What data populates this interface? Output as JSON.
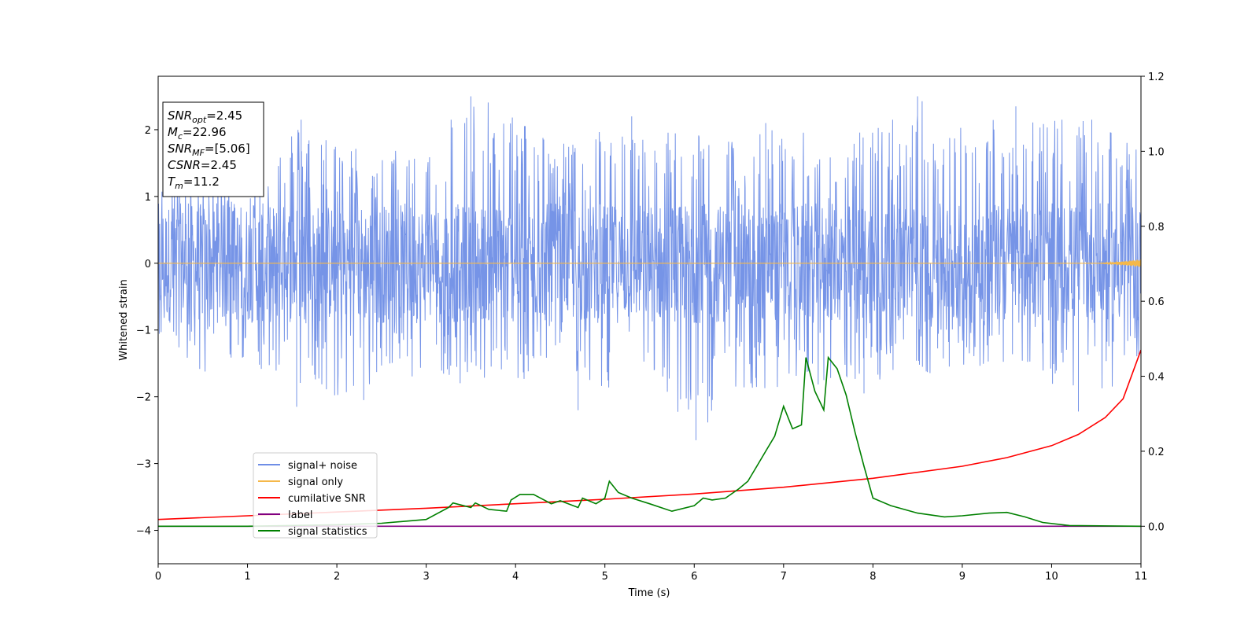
{
  "chart_data": {
    "type": "line",
    "title": "",
    "xlabel": "Time (s)",
    "ylabel_left": "Whitened strain",
    "ylabel_right": "",
    "xlim": [
      0,
      11
    ],
    "ylim_left": [
      -4.5,
      2.8
    ],
    "ylim_right": [
      -0.1,
      1.2
    ],
    "xticks": [
      0,
      1,
      2,
      3,
      4,
      5,
      6,
      7,
      8,
      9,
      10,
      11
    ],
    "xtick_labels": [
      "0",
      "1",
      "2",
      "3",
      "4",
      "5",
      "6",
      "7",
      "8",
      "9",
      "10",
      "11"
    ],
    "yticks_left": [
      -4,
      -3,
      -2,
      -1,
      0,
      1,
      2
    ],
    "ytick_labels_left": [
      "−4",
      "−3",
      "−2",
      "−1",
      "0",
      "1",
      "2"
    ],
    "yticks_right": [
      0.0,
      0.2,
      0.4,
      0.6,
      0.8,
      1.0,
      1.2
    ],
    "ytick_labels_right": [
      "0.0",
      "0.2",
      "0.4",
      "0.6",
      "0.8",
      "1.0",
      "1.2"
    ],
    "grid": false,
    "legend_position": "lower-left",
    "info_box": [
      {
        "sym": "SNR",
        "sub": "opt",
        "val": "=2.45"
      },
      {
        "sym": "M",
        "sub": "c",
        "val": "=22.96"
      },
      {
        "sym": "SNR",
        "sub": "MF",
        "val": "=[5.06]"
      },
      {
        "sym": "CSNR",
        "sub": "",
        "val": "=2.45"
      },
      {
        "sym": "T",
        "sub": "m",
        "val": "=11.2"
      }
    ],
    "series": [
      {
        "name": "signal+ noise",
        "axis": "left",
        "color": "#6f8ee6",
        "description": "noise envelope",
        "x": [
          0,
          0.5,
          1,
          1.5,
          2,
          2.5,
          3,
          3.5,
          4,
          4.5,
          5,
          5.5,
          6,
          6.5,
          7,
          7.5,
          8,
          8.5,
          9,
          9.5,
          10,
          10.5,
          11
        ],
        "upper": [
          1.4,
          1.5,
          1.3,
          2.1,
          1.9,
          1.6,
          2.0,
          2.5,
          2.3,
          1.8,
          2.1,
          1.9,
          2.2,
          1.8,
          2.2,
          1.7,
          2.1,
          2.5,
          2.1,
          2.3,
          2.2,
          2.1,
          1.7
        ],
        "lower": [
          -1.1,
          -1.7,
          -1.5,
          -2.1,
          -2.0,
          -1.9,
          -1.8,
          -1.8,
          -1.9,
          -1.5,
          -1.9,
          -1.6,
          -2.6,
          -1.9,
          -1.9,
          -1.8,
          -1.8,
          -1.7,
          -1.6,
          -1.6,
          -1.8,
          -2.2,
          -1.6
        ],
        "spikes_up": [
          [
            1.6,
            2.15
          ],
          [
            3.5,
            2.5
          ],
          [
            5.3,
            2.2
          ],
          [
            6.8,
            2.1
          ],
          [
            8.5,
            2.5
          ],
          [
            9.6,
            2.35
          ],
          [
            10.45,
            2.15
          ]
        ],
        "spikes_down": [
          [
            1.55,
            -2.15
          ],
          [
            2.3,
            -2.05
          ],
          [
            4.7,
            -2.2
          ],
          [
            6.02,
            -2.65
          ],
          [
            7.9,
            -1.95
          ],
          [
            10.3,
            -2.22
          ]
        ]
      },
      {
        "name": "signal only",
        "axis": "left",
        "color": "#f5b84a",
        "x": [
          0,
          10.5,
          11
        ],
        "y": [
          0,
          0,
          0
        ]
      },
      {
        "name": "cumilative SNR",
        "axis": "right",
        "color": "#ff0000",
        "x": [
          0,
          1,
          2,
          3,
          4,
          5,
          6,
          7,
          8,
          9,
          9.5,
          10,
          10.3,
          10.6,
          10.8,
          11
        ],
        "y": [
          0.018,
          0.028,
          0.038,
          0.048,
          0.06,
          0.072,
          0.086,
          0.104,
          0.128,
          0.16,
          0.183,
          0.215,
          0.245,
          0.29,
          0.34,
          0.47
        ]
      },
      {
        "name": "label",
        "axis": "right",
        "color": "#800080",
        "x": [
          0,
          11
        ],
        "y": [
          0,
          0
        ]
      },
      {
        "name": "signal statistics",
        "axis": "right",
        "color": "#008000",
        "x": [
          0,
          1,
          2,
          2.5,
          3,
          3.25,
          3.3,
          3.5,
          3.55,
          3.7,
          3.9,
          3.95,
          4.05,
          4.2,
          4.4,
          4.5,
          4.7,
          4.75,
          4.9,
          5.0,
          5.05,
          5.15,
          5.3,
          5.5,
          5.75,
          6.0,
          6.1,
          6.2,
          6.35,
          6.5,
          6.6,
          6.7,
          6.8,
          6.9,
          7.0,
          7.1,
          7.2,
          7.25,
          7.35,
          7.45,
          7.5,
          7.6,
          7.7,
          7.8,
          7.9,
          8.0,
          8.2,
          8.5,
          8.8,
          9.0,
          9.3,
          9.5,
          9.7,
          9.9,
          10.2,
          11
        ],
        "y": [
          0.0,
          0.0,
          0.004,
          0.008,
          0.018,
          0.05,
          0.062,
          0.05,
          0.062,
          0.045,
          0.04,
          0.07,
          0.085,
          0.085,
          0.06,
          0.068,
          0.05,
          0.075,
          0.06,
          0.075,
          0.12,
          0.09,
          0.075,
          0.06,
          0.04,
          0.055,
          0.075,
          0.07,
          0.075,
          0.1,
          0.12,
          0.16,
          0.2,
          0.24,
          0.32,
          0.26,
          0.27,
          0.45,
          0.36,
          0.31,
          0.45,
          0.42,
          0.35,
          0.25,
          0.16,
          0.075,
          0.055,
          0.035,
          0.025,
          0.028,
          0.035,
          0.037,
          0.025,
          0.01,
          0.002,
          0.0
        ]
      }
    ]
  }
}
